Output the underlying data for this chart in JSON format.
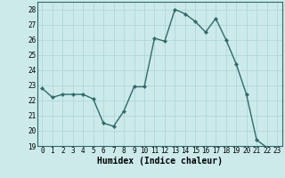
{
  "x": [
    0,
    1,
    2,
    3,
    4,
    5,
    6,
    7,
    8,
    9,
    10,
    11,
    12,
    13,
    14,
    15,
    16,
    17,
    18,
    19,
    20,
    21,
    22,
    23
  ],
  "y": [
    22.8,
    22.2,
    22.4,
    22.4,
    22.4,
    22.1,
    20.5,
    20.3,
    21.3,
    22.9,
    22.9,
    26.1,
    25.9,
    28.0,
    27.7,
    27.2,
    26.5,
    27.4,
    26.0,
    24.4,
    22.4,
    19.4,
    18.9,
    18.8
  ],
  "xlabel": "Humidex (Indice chaleur)",
  "xlim": [
    -0.5,
    23.5
  ],
  "ylim": [
    19,
    28.5
  ],
  "yticks": [
    19,
    20,
    21,
    22,
    23,
    24,
    25,
    26,
    27,
    28
  ],
  "xticks": [
    0,
    1,
    2,
    3,
    4,
    5,
    6,
    7,
    8,
    9,
    10,
    11,
    12,
    13,
    14,
    15,
    16,
    17,
    18,
    19,
    20,
    21,
    22,
    23
  ],
  "line_color": "#2e6b6b",
  "marker_color": "#2e6b6b",
  "bg_color": "#cceaea",
  "grid_color": "#aad4d4",
  "xlabel_fontsize": 7,
  "tick_fontsize": 5.5,
  "line_width": 1.0,
  "marker_size": 2.2
}
